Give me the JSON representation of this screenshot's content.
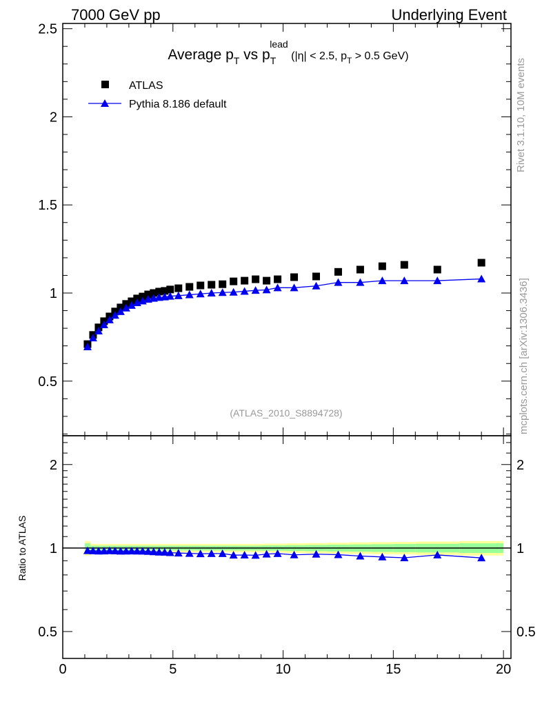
{
  "header": {
    "left": "7000 GeV pp",
    "right": "Underlying Event"
  },
  "side_text": {
    "rivet": "Rivet 3.1.10,  10M events",
    "mcplots": "mcplots.cern.ch [arXiv:1306.3436]"
  },
  "chart_data": {
    "type": "scatter",
    "title_parts": [
      "Average p",
      "T",
      " vs p",
      "T",
      "lead",
      " (|η| < 2.5, p",
      "T",
      " > 0.5 GeV)"
    ],
    "analysis_id": "(ATLAS_2010_S8894728)",
    "xlabel": "",
    "ylabel": "",
    "xlim": [
      0,
      20.34
    ],
    "ylim": [
      0.19,
      2.53
    ],
    "x_ticks": [
      "0",
      "5",
      "10",
      "15",
      "20"
    ],
    "y_ticks": [
      "0.5",
      "1",
      "1.5",
      "2",
      "2.5"
    ],
    "legend_position": "top-left",
    "x": [
      1.125,
      1.375,
      1.625,
      1.875,
      2.125,
      2.375,
      2.625,
      2.875,
      3.125,
      3.375,
      3.625,
      3.875,
      4.125,
      4.375,
      4.625,
      4.875,
      5.25,
      5.75,
      6.25,
      6.75,
      7.25,
      7.75,
      8.25,
      8.75,
      9.25,
      9.75,
      10.5,
      11.5,
      12.5,
      13.5,
      14.5,
      15.5,
      17,
      19
    ],
    "series": [
      {
        "name": "ATLAS",
        "marker": "square",
        "color": "#000000",
        "values": [
          0.71,
          0.762,
          0.805,
          0.84,
          0.867,
          0.895,
          0.918,
          0.938,
          0.953,
          0.969,
          0.98,
          0.992,
          1.0,
          1.008,
          1.012,
          1.02,
          1.027,
          1.035,
          1.043,
          1.047,
          1.05,
          1.066,
          1.07,
          1.078,
          1.07,
          1.078,
          1.09,
          1.094,
          1.12,
          1.133,
          1.152,
          1.16,
          1.133,
          1.172
        ]
      },
      {
        "name": "Pythia 8.186 default",
        "marker": "triangle",
        "color": "#0000ee",
        "values": [
          0.695,
          0.745,
          0.785,
          0.82,
          0.848,
          0.874,
          0.895,
          0.915,
          0.93,
          0.945,
          0.955,
          0.965,
          0.97,
          0.975,
          0.978,
          0.982,
          0.985,
          0.99,
          0.995,
          1.0,
          1.003,
          1.005,
          1.01,
          1.015,
          1.018,
          1.03,
          1.03,
          1.04,
          1.06,
          1.06,
          1.07,
          1.07,
          1.07,
          1.08
        ]
      }
    ],
    "ratio": {
      "ylabel": "Ratio to ATLAS",
      "ylim": [
        0.4,
        2.54
      ],
      "scale": "log",
      "y_ticks": [
        "0.5",
        "1",
        "2"
      ],
      "stat_band": [
        0.04,
        0.02,
        0.02,
        0.02,
        0.02,
        0.02,
        0.02,
        0.02,
        0.02,
        0.02,
        0.02,
        0.02,
        0.02,
        0.02,
        0.02,
        0.02,
        0.02,
        0.02,
        0.02,
        0.02,
        0.02,
        0.02,
        0.02,
        0.02,
        0.022,
        0.022,
        0.024,
        0.026,
        0.028,
        0.03,
        0.032,
        0.034,
        0.036,
        0.04
      ],
      "total_band": [
        0.06,
        0.035,
        0.035,
        0.035,
        0.035,
        0.035,
        0.035,
        0.035,
        0.035,
        0.035,
        0.035,
        0.035,
        0.035,
        0.035,
        0.035,
        0.035,
        0.035,
        0.035,
        0.035,
        0.035,
        0.035,
        0.035,
        0.035,
        0.035,
        0.037,
        0.037,
        0.04,
        0.042,
        0.045,
        0.048,
        0.05,
        0.052,
        0.055,
        0.06
      ],
      "stat_color": "#99ff99",
      "total_color": "#ffff99"
    }
  }
}
